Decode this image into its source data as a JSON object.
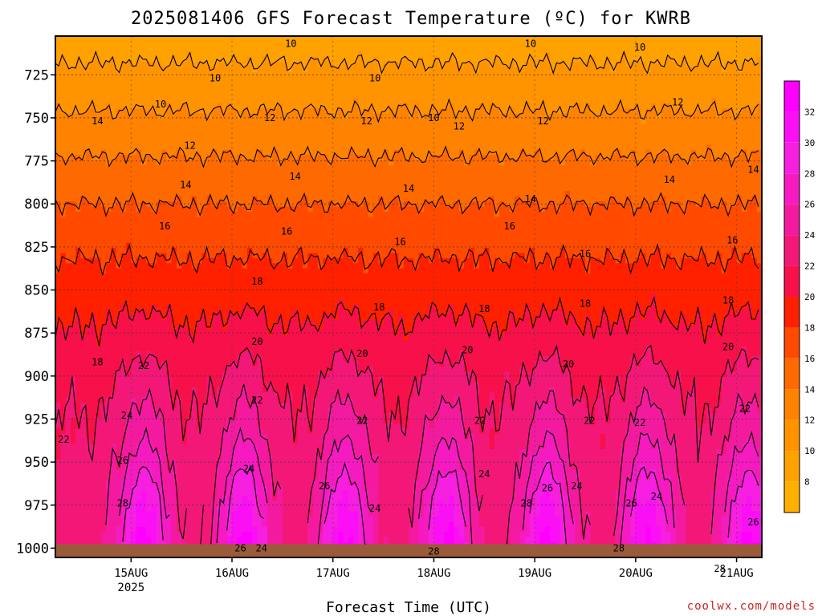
{
  "title": "2025081406 GFS Forecast Temperature (ºC) for KWRB",
  "xlabel": "Forecast Time (UTC)",
  "credit": "coolwx.com/models",
  "chart_data": {
    "type": "heatmap",
    "title": "2025081406 GFS Forecast Temperature (ºC) for KWRB",
    "xlabel": "Forecast Time (UTC)",
    "ylabel": "",
    "y_levels_hPa": [
      725,
      750,
      775,
      800,
      825,
      850,
      875,
      900,
      925,
      950,
      975,
      1000
    ],
    "y_axis": "pressure, inverted",
    "x_ticks": [
      {
        "label": "15AUG",
        "sub": "2025",
        "t": 18
      },
      {
        "label": "16AUG",
        "sub": "",
        "t": 42
      },
      {
        "label": "17AUG",
        "sub": "",
        "t": 66
      },
      {
        "label": "18AUG",
        "sub": "",
        "t": 90
      },
      {
        "label": "19AUG",
        "sub": "",
        "t": 114
      },
      {
        "label": "20AUG",
        "sub": "",
        "t": 138
      },
      {
        "label": "21AUG",
        "sub": "",
        "t": 162
      }
    ],
    "x_range_hours_since_init": [
      0,
      168
    ],
    "grid": true,
    "colorbar": {
      "ticks": [
        8,
        10,
        12,
        14,
        16,
        18,
        20,
        22,
        24,
        26,
        28,
        30,
        32
      ],
      "bins": [
        {
          "min": 6,
          "max": 8,
          "color": "#ffb000"
        },
        {
          "min": 8,
          "max": 10,
          "color": "#ffa200"
        },
        {
          "min": 10,
          "max": 12,
          "color": "#ff9400"
        },
        {
          "min": 12,
          "max": 14,
          "color": "#ff8200"
        },
        {
          "min": 14,
          "max": 16,
          "color": "#ff6a00"
        },
        {
          "min": 16,
          "max": 18,
          "color": "#ff4a00"
        },
        {
          "min": 18,
          "max": 20,
          "color": "#ff2000"
        },
        {
          "min": 20,
          "max": 22,
          "color": "#f7104a"
        },
        {
          "min": 22,
          "max": 24,
          "color": "#f31878"
        },
        {
          "min": 24,
          "max": 26,
          "color": "#f41aa0"
        },
        {
          "min": 26,
          "max": 28,
          "color": "#f51bc0"
        },
        {
          "min": 28,
          "max": 30,
          "color": "#f71fe0"
        },
        {
          "min": 30,
          "max": 32,
          "color": "#fb10f5"
        },
        {
          "min": 32,
          "max": 34,
          "color": "#ff00ff"
        }
      ]
    },
    "contour_levels": [
      10,
      12,
      14,
      16,
      18,
      20,
      22,
      24,
      26,
      28
    ],
    "profile_by_level": {
      "levels_hPa": [
        725,
        750,
        775,
        800,
        825,
        850,
        875,
        900,
        925,
        950,
        975,
        1000
      ],
      "night_temp_C": [
        10.5,
        12.3,
        14.2,
        16.0,
        17.6,
        19.0,
        20.2,
        21.3,
        22.0,
        22.5,
        22.8,
        23.0
      ],
      "afternoon_temp_C": [
        10.5,
        12.3,
        14.2,
        16.0,
        18.0,
        20.0,
        22.3,
        24.5,
        26.3,
        28.2,
        30.5,
        33.0
      ]
    },
    "afternoon_peaks_hours": [
      21,
      45,
      69,
      93,
      117,
      141,
      165
    ],
    "surface_color": "#9b5a3a",
    "contour_labels": [
      {
        "v": "10",
        "t": 56,
        "p": 707
      },
      {
        "v": "10",
        "t": 38,
        "p": 727
      },
      {
        "v": "10",
        "t": 25,
        "p": 742
      },
      {
        "v": "10",
        "t": 76,
        "p": 727
      },
      {
        "v": "10",
        "t": 90,
        "p": 750
      },
      {
        "v": "10",
        "t": 113,
        "p": 707
      },
      {
        "v": "10",
        "t": 139,
        "p": 709
      },
      {
        "v": "12",
        "t": 32,
        "p": 766
      },
      {
        "v": "12",
        "t": 51,
        "p": 750
      },
      {
        "v": "12",
        "t": 74,
        "p": 752
      },
      {
        "v": "12",
        "t": 96,
        "p": 755
      },
      {
        "v": "12",
        "t": 116,
        "p": 752
      },
      {
        "v": "12",
        "t": 148,
        "p": 741
      },
      {
        "v": "12",
        "t": 168,
        "p": 756
      },
      {
        "v": "14",
        "t": 10,
        "p": 752
      },
      {
        "v": "14",
        "t": 31,
        "p": 789
      },
      {
        "v": "14",
        "t": 57,
        "p": 784
      },
      {
        "v": "14",
        "t": 84,
        "p": 791
      },
      {
        "v": "14",
        "t": 113,
        "p": 797
      },
      {
        "v": "14",
        "t": 146,
        "p": 786
      },
      {
        "v": "14",
        "t": 166,
        "p": 780
      },
      {
        "v": "16",
        "t": 26,
        "p": 813
      },
      {
        "v": "16",
        "t": 55,
        "p": 816
      },
      {
        "v": "16",
        "t": 82,
        "p": 822
      },
      {
        "v": "16",
        "t": 108,
        "p": 813
      },
      {
        "v": "16",
        "t": 126,
        "p": 829
      },
      {
        "v": "16",
        "t": 161,
        "p": 821
      },
      {
        "v": "18",
        "t": 48,
        "p": 845
      },
      {
        "v": "18",
        "t": 77,
        "p": 860
      },
      {
        "v": "18",
        "t": 102,
        "p": 861
      },
      {
        "v": "18",
        "t": 126,
        "p": 858
      },
      {
        "v": "18",
        "t": 160,
        "p": 856
      },
      {
        "v": "18",
        "t": 10,
        "p": 892
      },
      {
        "v": "20",
        "t": 48,
        "p": 880
      },
      {
        "v": "20",
        "t": 73,
        "p": 887
      },
      {
        "v": "20",
        "t": 98,
        "p": 885
      },
      {
        "v": "20",
        "t": 122,
        "p": 893
      },
      {
        "v": "20",
        "t": 160,
        "p": 883
      },
      {
        "v": "22",
        "t": 21,
        "p": 894
      },
      {
        "v": "22",
        "t": 48,
        "p": 914
      },
      {
        "v": "22",
        "t": 73,
        "p": 926
      },
      {
        "v": "22",
        "t": 101,
        "p": 926
      },
      {
        "v": "22",
        "t": 127,
        "p": 926
      },
      {
        "v": "22",
        "t": 139,
        "p": 927
      },
      {
        "v": "22",
        "t": 164,
        "p": 919
      },
      {
        "v": "22",
        "t": 2,
        "p": 937
      },
      {
        "v": "24",
        "t": 17,
        "p": 923
      },
      {
        "v": "24",
        "t": 46,
        "p": 954
      },
      {
        "v": "24",
        "t": 102,
        "p": 957
      },
      {
        "v": "24",
        "t": 76,
        "p": 977
      },
      {
        "v": "24",
        "t": 124,
        "p": 964
      },
      {
        "v": "24",
        "t": 143,
        "p": 970
      },
      {
        "v": "24",
        "t": 49,
        "p": 1000
      },
      {
        "v": "24",
        "t": 174,
        "p": 963
      },
      {
        "v": "26",
        "t": 16,
        "p": 949
      },
      {
        "v": "26",
        "t": 64,
        "p": 964
      },
      {
        "v": "26",
        "t": 117,
        "p": 965
      },
      {
        "v": "26",
        "t": 137,
        "p": 974
      },
      {
        "v": "26",
        "t": 166,
        "p": 985
      },
      {
        "v": "26",
        "t": 44,
        "p": 1000
      },
      {
        "v": "28",
        "t": 16,
        "p": 974
      },
      {
        "v": "28",
        "t": 112,
        "p": 974
      },
      {
        "v": "28",
        "t": 90,
        "p": 1002
      },
      {
        "v": "28",
        "t": 158,
        "p": 1012
      },
      {
        "v": "28",
        "t": 134,
        "p": 1000
      }
    ]
  },
  "colorbar_label_color": "#000000"
}
